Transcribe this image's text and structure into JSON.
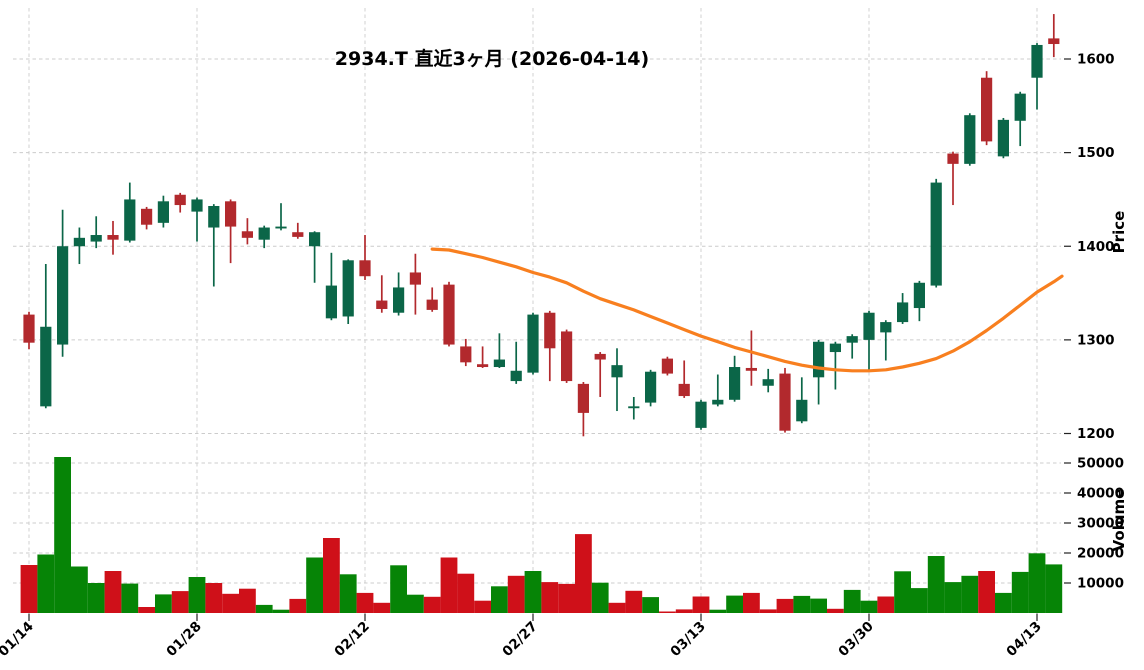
{
  "chart_data": {
    "type": "candlestick",
    "title": "2934.T 直近3ヶ月 (2026-04-14)",
    "ylabel_price": "Price",
    "ylabel_volume": "Volume",
    "legend_position": "none",
    "grid": true,
    "price_axis_ticks": [
      1200,
      1300,
      1400,
      1500,
      1600
    ],
    "volume_axis_ticks": [
      10000,
      20000,
      30000,
      40000,
      50000
    ],
    "x_tick_labels": [
      "01/14",
      "01/28",
      "02/12",
      "02/27",
      "03/13",
      "03/30",
      "04/13"
    ],
    "x_tick_indices": [
      0,
      10,
      20,
      30,
      40,
      50,
      60
    ],
    "price_axis_range": [
      1150,
      1660
    ],
    "volume_axis_range": [
      0,
      57000
    ],
    "colors": {
      "candle_up": "#0b6648",
      "candle_down": "#b2292d",
      "volume_up": "#068406",
      "volume_down": "#cf1019",
      "ma_line": "#f87f1f",
      "grid": "#cccccc",
      "text": "#000000"
    },
    "dates": [
      "01/14",
      "01/15",
      "01/16",
      "01/19",
      "01/20",
      "01/21",
      "01/22",
      "01/23",
      "01/26",
      "01/27",
      "01/28",
      "01/29",
      "01/30",
      "02/02",
      "02/03",
      "02/04",
      "02/05",
      "02/06",
      "02/09",
      "02/10",
      "02/12",
      "02/13",
      "02/16",
      "02/17",
      "02/18",
      "02/19",
      "02/20",
      "02/24",
      "02/25",
      "02/26",
      "02/27",
      "03/02",
      "03/03",
      "03/04",
      "03/05",
      "03/06",
      "03/09",
      "03/10",
      "03/11",
      "03/12",
      "03/13",
      "03/16",
      "03/17",
      "03/18",
      "03/19",
      "03/23",
      "03/24",
      "03/25",
      "03/26",
      "03/27",
      "03/30",
      "03/31",
      "04/01",
      "04/02",
      "04/03",
      "04/06",
      "04/07",
      "04/08",
      "04/09",
      "04/10",
      "04/13",
      "04/14"
    ],
    "ohlc": [
      [
        1327,
        1330,
        1290,
        1297
      ],
      [
        1229,
        1381,
        1227,
        1314
      ],
      [
        1295,
        1439,
        1282,
        1400
      ],
      [
        1400,
        1420,
        1381,
        1409
      ],
      [
        1405,
        1432,
        1398,
        1412
      ],
      [
        1412,
        1427,
        1391,
        1407
      ],
      [
        1406,
        1468,
        1404,
        1450
      ],
      [
        1440,
        1442,
        1418,
        1423
      ],
      [
        1425,
        1454,
        1420,
        1448
      ],
      [
        1455,
        1457,
        1436,
        1444
      ],
      [
        1437,
        1452,
        1405,
        1450
      ],
      [
        1420,
        1445,
        1357,
        1443
      ],
      [
        1448,
        1450,
        1382,
        1421
      ],
      [
        1416,
        1430,
        1402,
        1409
      ],
      [
        1407,
        1422,
        1398,
        1420
      ],
      [
        1419,
        1446,
        1417,
        1421
      ],
      [
        1415,
        1425,
        1408,
        1410
      ],
      [
        1400,
        1416,
        1361,
        1415
      ],
      [
        1323,
        1393,
        1321,
        1358
      ],
      [
        1325,
        1386,
        1317,
        1385
      ],
      [
        1385,
        1412,
        1364,
        1368
      ],
      [
        1342,
        1369,
        1329,
        1333
      ],
      [
        1329,
        1372,
        1326,
        1356
      ],
      [
        1372,
        1392,
        1327,
        1359
      ],
      [
        1343,
        1356,
        1330,
        1332
      ],
      [
        1359,
        1362,
        1293,
        1295
      ],
      [
        1293,
        1301,
        1272,
        1276
      ],
      [
        1274,
        1293,
        1270,
        1271
      ],
      [
        1271,
        1307,
        1270,
        1279
      ],
      [
        1256,
        1298,
        1253,
        1267
      ],
      [
        1265,
        1329,
        1263,
        1327
      ],
      [
        1329,
        1331,
        1256,
        1291
      ],
      [
        1309,
        1311,
        1254,
        1256
      ],
      [
        1253,
        1255,
        1197,
        1222
      ],
      [
        1285,
        1287,
        1239,
        1279
      ],
      [
        1260,
        1291,
        1224,
        1273
      ],
      [
        1227,
        1239,
        1215,
        1229
      ],
      [
        1233,
        1268,
        1229,
        1266
      ],
      [
        1280,
        1282,
        1262,
        1264
      ],
      [
        1253,
        1278,
        1238,
        1240
      ],
      [
        1206,
        1236,
        1204,
        1234
      ],
      [
        1231,
        1263,
        1229,
        1236
      ],
      [
        1236,
        1283,
        1234,
        1271
      ],
      [
        1270,
        1310,
        1251,
        1267
      ],
      [
        1251,
        1269,
        1244,
        1258
      ],
      [
        1264,
        1270,
        1201,
        1203
      ],
      [
        1213,
        1260,
        1211,
        1236
      ],
      [
        1260,
        1300,
        1231,
        1298
      ],
      [
        1287,
        1298,
        1247,
        1296
      ],
      [
        1297,
        1306,
        1280,
        1304
      ],
      [
        1300,
        1331,
        1267,
        1329
      ],
      [
        1308,
        1321,
        1278,
        1319
      ],
      [
        1319,
        1350,
        1317,
        1340
      ],
      [
        1334,
        1363,
        1320,
        1361
      ],
      [
        1358,
        1472,
        1356,
        1468
      ],
      [
        1499,
        1501,
        1444,
        1488
      ],
      [
        1488,
        1542,
        1486,
        1540
      ],
      [
        1580,
        1587,
        1508,
        1512
      ],
      [
        1496,
        1537,
        1494,
        1535
      ],
      [
        1534,
        1565,
        1507,
        1563
      ],
      [
        1580,
        1617,
        1546,
        1615
      ],
      [
        1622,
        1648,
        1602,
        1616
      ]
    ],
    "volumes": [
      16000,
      19500,
      52000,
      15500,
      10000,
      14000,
      9800,
      2000,
      6200,
      7300,
      12000,
      10000,
      6400,
      8100,
      2700,
      1100,
      4700,
      18500,
      25000,
      12900,
      6700,
      3400,
      15900,
      6100,
      5400,
      18500,
      13100,
      4100,
      8900,
      12400,
      14000,
      10300,
      9700,
      26300,
      10100,
      3400,
      7400,
      5300,
      500,
      1200,
      5500,
      1100,
      5800,
      6700,
      1200,
      4700,
      5700,
      4800,
      1400,
      7700,
      4100,
      5500,
      13900,
      8300,
      19000,
      10300,
      12400,
      14000,
      6700,
      13700,
      19900,
      16200
    ],
    "ma_series": {
      "name": "moving-average",
      "start_index": 24,
      "values": [
        1397,
        1396,
        1392,
        1388,
        1383,
        1378,
        1372,
        1367,
        1361,
        1352,
        1344,
        1338,
        1332,
        1325,
        1318,
        1311,
        1304,
        1298,
        1292,
        1287,
        1282,
        1277,
        1273,
        1270,
        1268,
        1267,
        1267,
        1268,
        1271,
        1275,
        1280,
        1288,
        1298,
        1310,
        1323,
        1337,
        1351,
        1362
      ],
      "extend_value": 1368
    }
  }
}
